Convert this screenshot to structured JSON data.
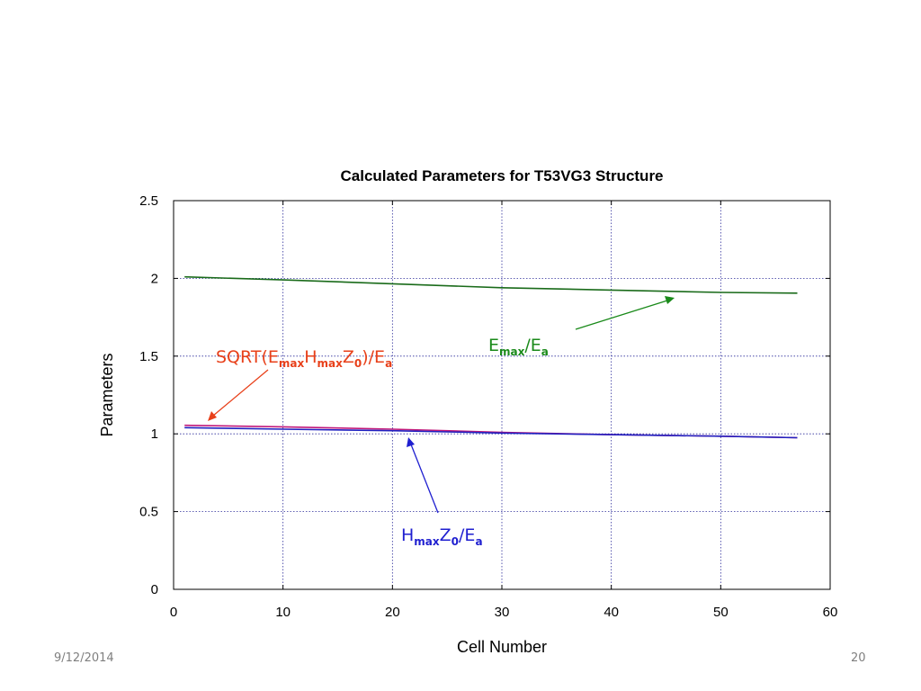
{
  "footer": {
    "date": "9/12/2014",
    "page": "20"
  },
  "chart_data": {
    "type": "line",
    "title": "Calculated Parameters for T53VG3 Structure",
    "xlabel": "Cell Number",
    "ylabel": "Parameters",
    "xlim": [
      0,
      60
    ],
    "ylim": [
      0,
      2.5
    ],
    "xticks": [
      "0",
      "10",
      "20",
      "30",
      "40",
      "50",
      "60"
    ],
    "yticks": [
      "0",
      "0.5",
      "1",
      "1.5",
      "2",
      "2.5"
    ],
    "grid": true,
    "series": [
      {
        "key": "emax",
        "color": "#1a6b1a",
        "x": [
          1,
          10,
          20,
          30,
          40,
          50,
          57
        ],
        "y": [
          2.01,
          1.99,
          1.965,
          1.94,
          1.925,
          1.91,
          1.905
        ]
      },
      {
        "key": "sqrt",
        "color": "#c0187a",
        "x": [
          1,
          10,
          20,
          30,
          40,
          50,
          57
        ],
        "y": [
          1.055,
          1.045,
          1.03,
          1.01,
          0.995,
          0.985,
          0.975
        ]
      },
      {
        "key": "hmax",
        "color": "#2020c0",
        "x": [
          1,
          10,
          20,
          30,
          40,
          50,
          57
        ],
        "y": [
          1.04,
          1.03,
          1.02,
          1.005,
          0.995,
          0.985,
          0.975
        ]
      }
    ],
    "annotations": {
      "emax": {
        "color": "#1a8a1a",
        "base1": "E",
        "sub1": "max",
        "mid": "/E",
        "sub2": "a"
      },
      "sqrt": {
        "color": "#e8401a",
        "pre": "SQRT(E",
        "sub1": "max",
        "mid1": "H",
        "sub2": "max",
        "mid2": "Z",
        "sub3": "0",
        "mid3": ")/E",
        "sub4": "a"
      },
      "hmax": {
        "color": "#1f1fd0",
        "base1": "H",
        "sub1": "max",
        "mid1": "Z",
        "sub2": "0",
        "mid2": "/E",
        "sub3": "a"
      }
    }
  }
}
